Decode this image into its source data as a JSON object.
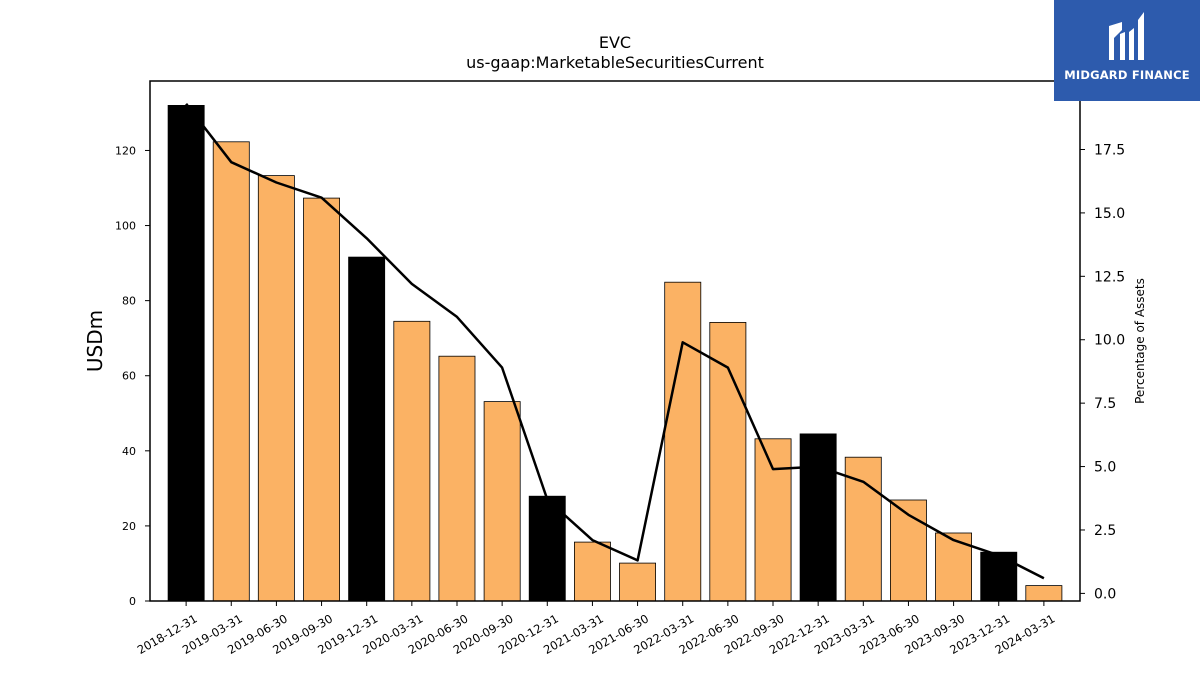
{
  "brand": {
    "name": "MIDGARD FINANCE",
    "bg_color": "#2d5bad"
  },
  "chart_data": {
    "type": "bar",
    "title": "EVC",
    "subtitle": "us-gaap:MarketableSecuritiesCurrent",
    "ylabel": "USDm",
    "y2label": "Percentage of Assets",
    "ylim": [
      0,
      138.5
    ],
    "y2lim": [
      -0.3,
      20.2
    ],
    "yticks": [
      0,
      20,
      40,
      60,
      80,
      100,
      120
    ],
    "y2ticks": [
      0.0,
      2.5,
      5.0,
      7.5,
      10.0,
      12.5,
      15.0,
      17.5
    ],
    "y2tick_labels": [
      "0.0",
      "2.5",
      "5.0",
      "7.5",
      "10.0",
      "12.5",
      "15.0",
      "17.5"
    ],
    "categories": [
      "2018-12-31",
      "2019-03-31",
      "2019-06-30",
      "2019-09-30",
      "2019-12-31",
      "2020-03-31",
      "2020-06-30",
      "2020-09-30",
      "2020-12-31",
      "2021-03-31",
      "2021-06-30",
      "2022-03-31",
      "2022-06-30",
      "2022-09-30",
      "2022-12-31",
      "2023-03-31",
      "2023-06-30",
      "2023-09-30",
      "2023-12-31",
      "2024-03-31"
    ],
    "series": [
      {
        "type": "bar",
        "axis": "left",
        "values": [
          132.0,
          122.3,
          113.3,
          107.3,
          91.6,
          74.5,
          65.2,
          53.1,
          27.9,
          15.7,
          10.1,
          84.9,
          74.2,
          43.2,
          44.5,
          38.3,
          26.9,
          18.1,
          13.0,
          4.1
        ]
      },
      {
        "type": "line",
        "axis": "right",
        "values": [
          19.3,
          17.0,
          16.2,
          15.6,
          14.0,
          12.2,
          10.9,
          8.9,
          3.7,
          2.1,
          1.3,
          9.9,
          8.9,
          4.9,
          5.0,
          4.4,
          3.1,
          2.1,
          1.5,
          0.6
        ]
      }
    ],
    "bar_colors": {
      "year_end": "#000000",
      "quarter": "#fbb264"
    },
    "line_color": "#000000",
    "grid": false,
    "legend": "none"
  }
}
